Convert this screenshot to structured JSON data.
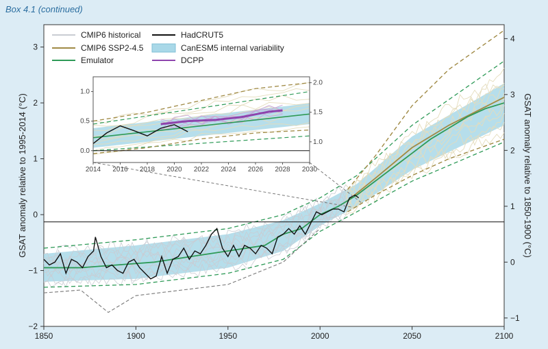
{
  "header": {
    "box_label": "Box 4.1 (continued)"
  },
  "chart_data": {
    "type": "line",
    "xlabel": "",
    "ylabel_left": "GSAT anomaly relative to 1995-2014 (°C)",
    "ylabel_right": "GSAT anomaly relative to 1850-1900 (°C)",
    "xlim": [
      1850,
      2100
    ],
    "ylim_left": [
      -2,
      3.4
    ],
    "ylim_right_offset": 0.85,
    "x_ticks": [
      "1850",
      "1900",
      "1950",
      "2000",
      "2050",
      "2100"
    ],
    "y_left_ticks": [
      "−2",
      "−1",
      "0",
      "1",
      "2",
      "3"
    ],
    "y_right_ticks": [
      "−1",
      "0",
      "1",
      "2",
      "3",
      "4"
    ],
    "colors": {
      "cmip6_historical": "#c9ccd3",
      "cmip6_ssp": "#a08a45",
      "cmip6_members": "#e4dcbc",
      "emulator": "#2e9a57",
      "hadcrut": "#111111",
      "band": "#a9d8e8",
      "dcpp": "#8e44ad"
    },
    "legend": [
      {
        "label": "CMIP6 historical",
        "key": "cmip6_historical"
      },
      {
        "label": "CMIP6 SSP2-4.5",
        "key": "cmip6_ssp"
      },
      {
        "label": "Emulator",
        "key": "emulator"
      },
      {
        "label": "HadCRUT5",
        "key": "hadcrut"
      },
      {
        "label": "CanESM5 internal variability",
        "key": "band"
      },
      {
        "label": "DCPP",
        "key": "dcpp"
      }
    ],
    "emulator_mean": {
      "x": [
        1850,
        1870,
        1890,
        1910,
        1930,
        1950,
        1960,
        1970,
        1980,
        1990,
        2000,
        2010,
        2020,
        2030,
        2040,
        2050,
        2060,
        2070,
        2080,
        2090,
        2100
      ],
      "y": [
        -0.95,
        -0.95,
        -0.9,
        -0.85,
        -0.75,
        -0.65,
        -0.6,
        -0.55,
        -0.35,
        -0.25,
        0.0,
        0.15,
        0.35,
        0.6,
        0.85,
        1.1,
        1.35,
        1.55,
        1.75,
        1.9,
        2.0
      ]
    },
    "band_upper": {
      "x": [
        1850,
        1900,
        1950,
        1980,
        2000,
        2020,
        2050,
        2100
      ],
      "y": [
        -0.7,
        -0.55,
        -0.35,
        -0.1,
        0.2,
        0.55,
        1.4,
        2.35
      ]
    },
    "band_lower": {
      "x": [
        1850,
        1900,
        1950,
        1980,
        2000,
        2020,
        2050,
        2100
      ],
      "y": [
        -1.2,
        -1.15,
        -0.95,
        -0.65,
        -0.2,
        0.15,
        0.8,
        1.6
      ]
    },
    "emulator_upper": {
      "x": [
        1850,
        1900,
        1950,
        1980,
        2000,
        2020,
        2050,
        2100
      ],
      "y": [
        -0.6,
        -0.45,
        -0.25,
        0.0,
        0.3,
        0.7,
        1.6,
        2.75
      ]
    },
    "emulator_lower": {
      "x": [
        1850,
        1900,
        1950,
        1980,
        2000,
        2020,
        2050,
        2100
      ],
      "y": [
        -1.3,
        -1.25,
        -1.05,
        -0.8,
        -0.3,
        0.05,
        0.6,
        1.3
      ]
    },
    "ssp_mean": {
      "x": [
        2015,
        2030,
        2050,
        2070,
        2100
      ],
      "y": [
        0.25,
        0.65,
        1.2,
        1.6,
        2.1
      ]
    },
    "ssp_upper": {
      "x": [
        2015,
        2030,
        2050,
        2070,
        2100
      ],
      "y": [
        0.45,
        1.05,
        1.95,
        2.6,
        3.3
      ]
    },
    "ssp_lower": {
      "x": [
        2015,
        2030,
        2050,
        2070,
        2100
      ],
      "y": [
        0.05,
        0.35,
        0.7,
        1.0,
        1.35
      ]
    },
    "hist_lower": {
      "x": [
        1850,
        1870,
        1885,
        1900,
        1950,
        1980,
        2000
      ],
      "y": [
        -1.4,
        -1.35,
        -1.75,
        -1.45,
        -1.25,
        -0.85,
        -0.25
      ]
    },
    "hadcrut5": {
      "x": [
        1850,
        1853,
        1856,
        1859,
        1862,
        1865,
        1868,
        1871,
        1874,
        1877,
        1878,
        1881,
        1884,
        1887,
        1890,
        1893,
        1896,
        1899,
        1902,
        1905,
        1908,
        1911,
        1914,
        1917,
        1920,
        1923,
        1926,
        1929,
        1932,
        1935,
        1938,
        1941,
        1944,
        1947,
        1950,
        1953,
        1956,
        1959,
        1962,
        1965,
        1968,
        1971,
        1974,
        1977,
        1980,
        1983,
        1986,
        1989,
        1992,
        1995,
        1998,
        2001,
        2004,
        2007,
        2010,
        2013,
        2016,
        2019,
        2021
      ],
      "y": [
        -0.8,
        -0.9,
        -0.85,
        -0.7,
        -1.05,
        -0.8,
        -0.85,
        -0.95,
        -0.75,
        -0.65,
        -0.4,
        -0.75,
        -0.95,
        -0.9,
        -1.0,
        -1.05,
        -0.85,
        -0.8,
        -0.95,
        -1.05,
        -1.15,
        -1.1,
        -0.75,
        -1.05,
        -0.8,
        -0.75,
        -0.6,
        -0.8,
        -0.65,
        -0.7,
        -0.55,
        -0.35,
        -0.25,
        -0.6,
        -0.75,
        -0.55,
        -0.75,
        -0.55,
        -0.6,
        -0.7,
        -0.55,
        -0.6,
        -0.7,
        -0.4,
        -0.35,
        -0.25,
        -0.35,
        -0.2,
        -0.35,
        -0.15,
        0.05,
        0.0,
        0.05,
        0.1,
        0.1,
        0.05,
        0.3,
        0.35,
        0.3
      ]
    },
    "inset": {
      "xlim": [
        2014,
        2030
      ],
      "ylim_left": [
        -0.2,
        1.25
      ],
      "ylim_right_offset": 0.85,
      "x_ticks": [
        "2014",
        "2016",
        "2018",
        "2020",
        "2022",
        "2024",
        "2026",
        "2028",
        "2030"
      ],
      "y_left_ticks": [
        "0.0",
        "0.5",
        "1.0"
      ],
      "y_right_ticks": [
        "1.0",
        "1.5",
        "2.0"
      ],
      "emulator_mean": {
        "x": [
          2014,
          2030
        ],
        "y": [
          0.22,
          0.62
        ]
      },
      "emulator_upper": {
        "x": [
          2014,
          2030
        ],
        "y": [
          0.45,
          1.0
        ]
      },
      "emulator_lower": {
        "x": [
          2014,
          2030
        ],
        "y": [
          0.0,
          0.25
        ]
      },
      "band_upper": {
        "x": [
          2014,
          2030
        ],
        "y": [
          0.38,
          0.8
        ]
      },
      "band_lower": {
        "x": [
          2014,
          2030
        ],
        "y": [
          0.05,
          0.45
        ]
      },
      "ssp_upper": {
        "x": [
          2014,
          2018,
          2022,
          2026,
          2030
        ],
        "y": [
          0.5,
          0.65,
          0.85,
          1.05,
          1.15
        ]
      },
      "ssp_lower": {
        "x": [
          2014,
          2018,
          2022,
          2026,
          2030
        ],
        "y": [
          -0.05,
          0.05,
          0.2,
          0.3,
          0.35
        ]
      },
      "hadcrut5": {
        "x": [
          2014,
          2015,
          2016,
          2017,
          2018,
          2019,
          2020,
          2021
        ],
        "y": [
          0.12,
          0.3,
          0.42,
          0.34,
          0.25,
          0.38,
          0.44,
          0.32
        ]
      },
      "dcpp": {
        "x": [
          2019,
          2021,
          2023,
          2025,
          2027,
          2028
        ],
        "y": [
          0.45,
          0.5,
          0.52,
          0.57,
          0.66,
          0.68
        ]
      }
    }
  }
}
